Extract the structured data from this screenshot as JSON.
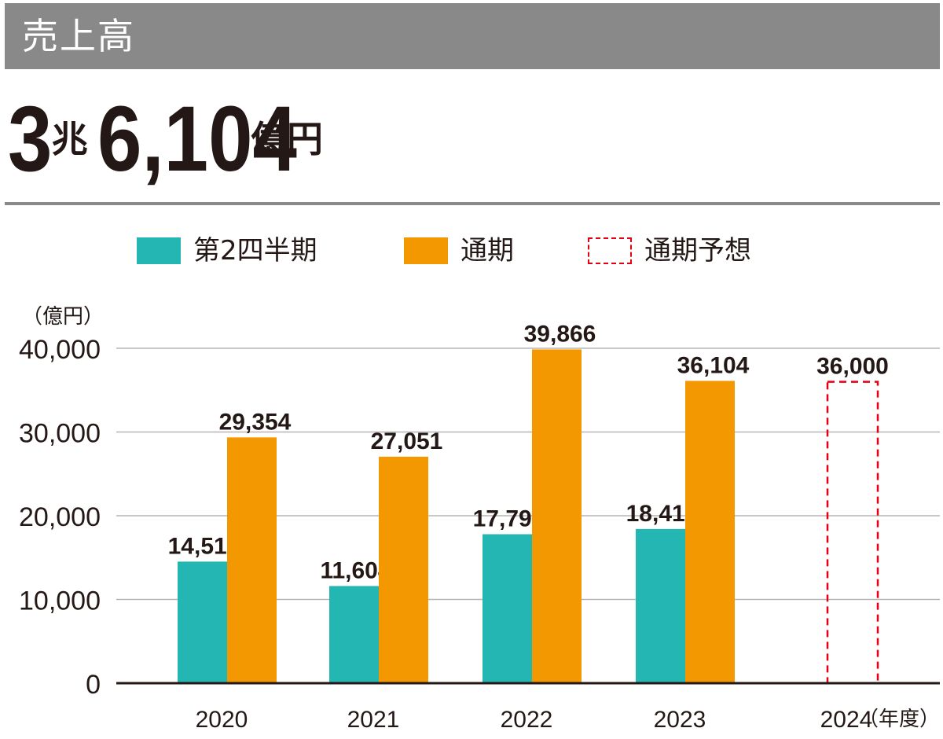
{
  "header": {
    "title": "売上高"
  },
  "headline": {
    "part1": "3",
    "unit1": "兆",
    "part2": "6,104",
    "unit2": "億円"
  },
  "colors": {
    "header_bg": "#898989",
    "q2": "#24b6b2",
    "full": "#f39800",
    "forecast_border": "#e60012",
    "text": "#231815",
    "grid": "#b5b5b5"
  },
  "chart_data": {
    "type": "bar",
    "unit_label": "（億円）",
    "x_unit_label": "（年度）",
    "categories": [
      "2020",
      "2021",
      "2022",
      "2023",
      "2024"
    ],
    "y_ticks": [
      "0",
      "10,000",
      "20,000",
      "30,000",
      "40,000"
    ],
    "ylim": [
      0,
      40000
    ],
    "grid": true,
    "legend_position": "top",
    "series": [
      {
        "name": "第2四半期",
        "style": "solid",
        "values": [
          14519,
          11604,
          17792,
          18415,
          null
        ],
        "labels": [
          "14,519",
          "11,604",
          "17,792",
          "18,415",
          ""
        ]
      },
      {
        "name": "通期",
        "style": "solid",
        "values": [
          29354,
          27051,
          39866,
          36104,
          null
        ],
        "labels": [
          "29,354",
          "27,051",
          "39,866",
          "36,104",
          ""
        ]
      },
      {
        "name": "通期予想",
        "style": "dashed",
        "values": [
          null,
          null,
          null,
          null,
          36000
        ],
        "labels": [
          "",
          "",
          "",
          "",
          "36,000"
        ]
      }
    ]
  }
}
